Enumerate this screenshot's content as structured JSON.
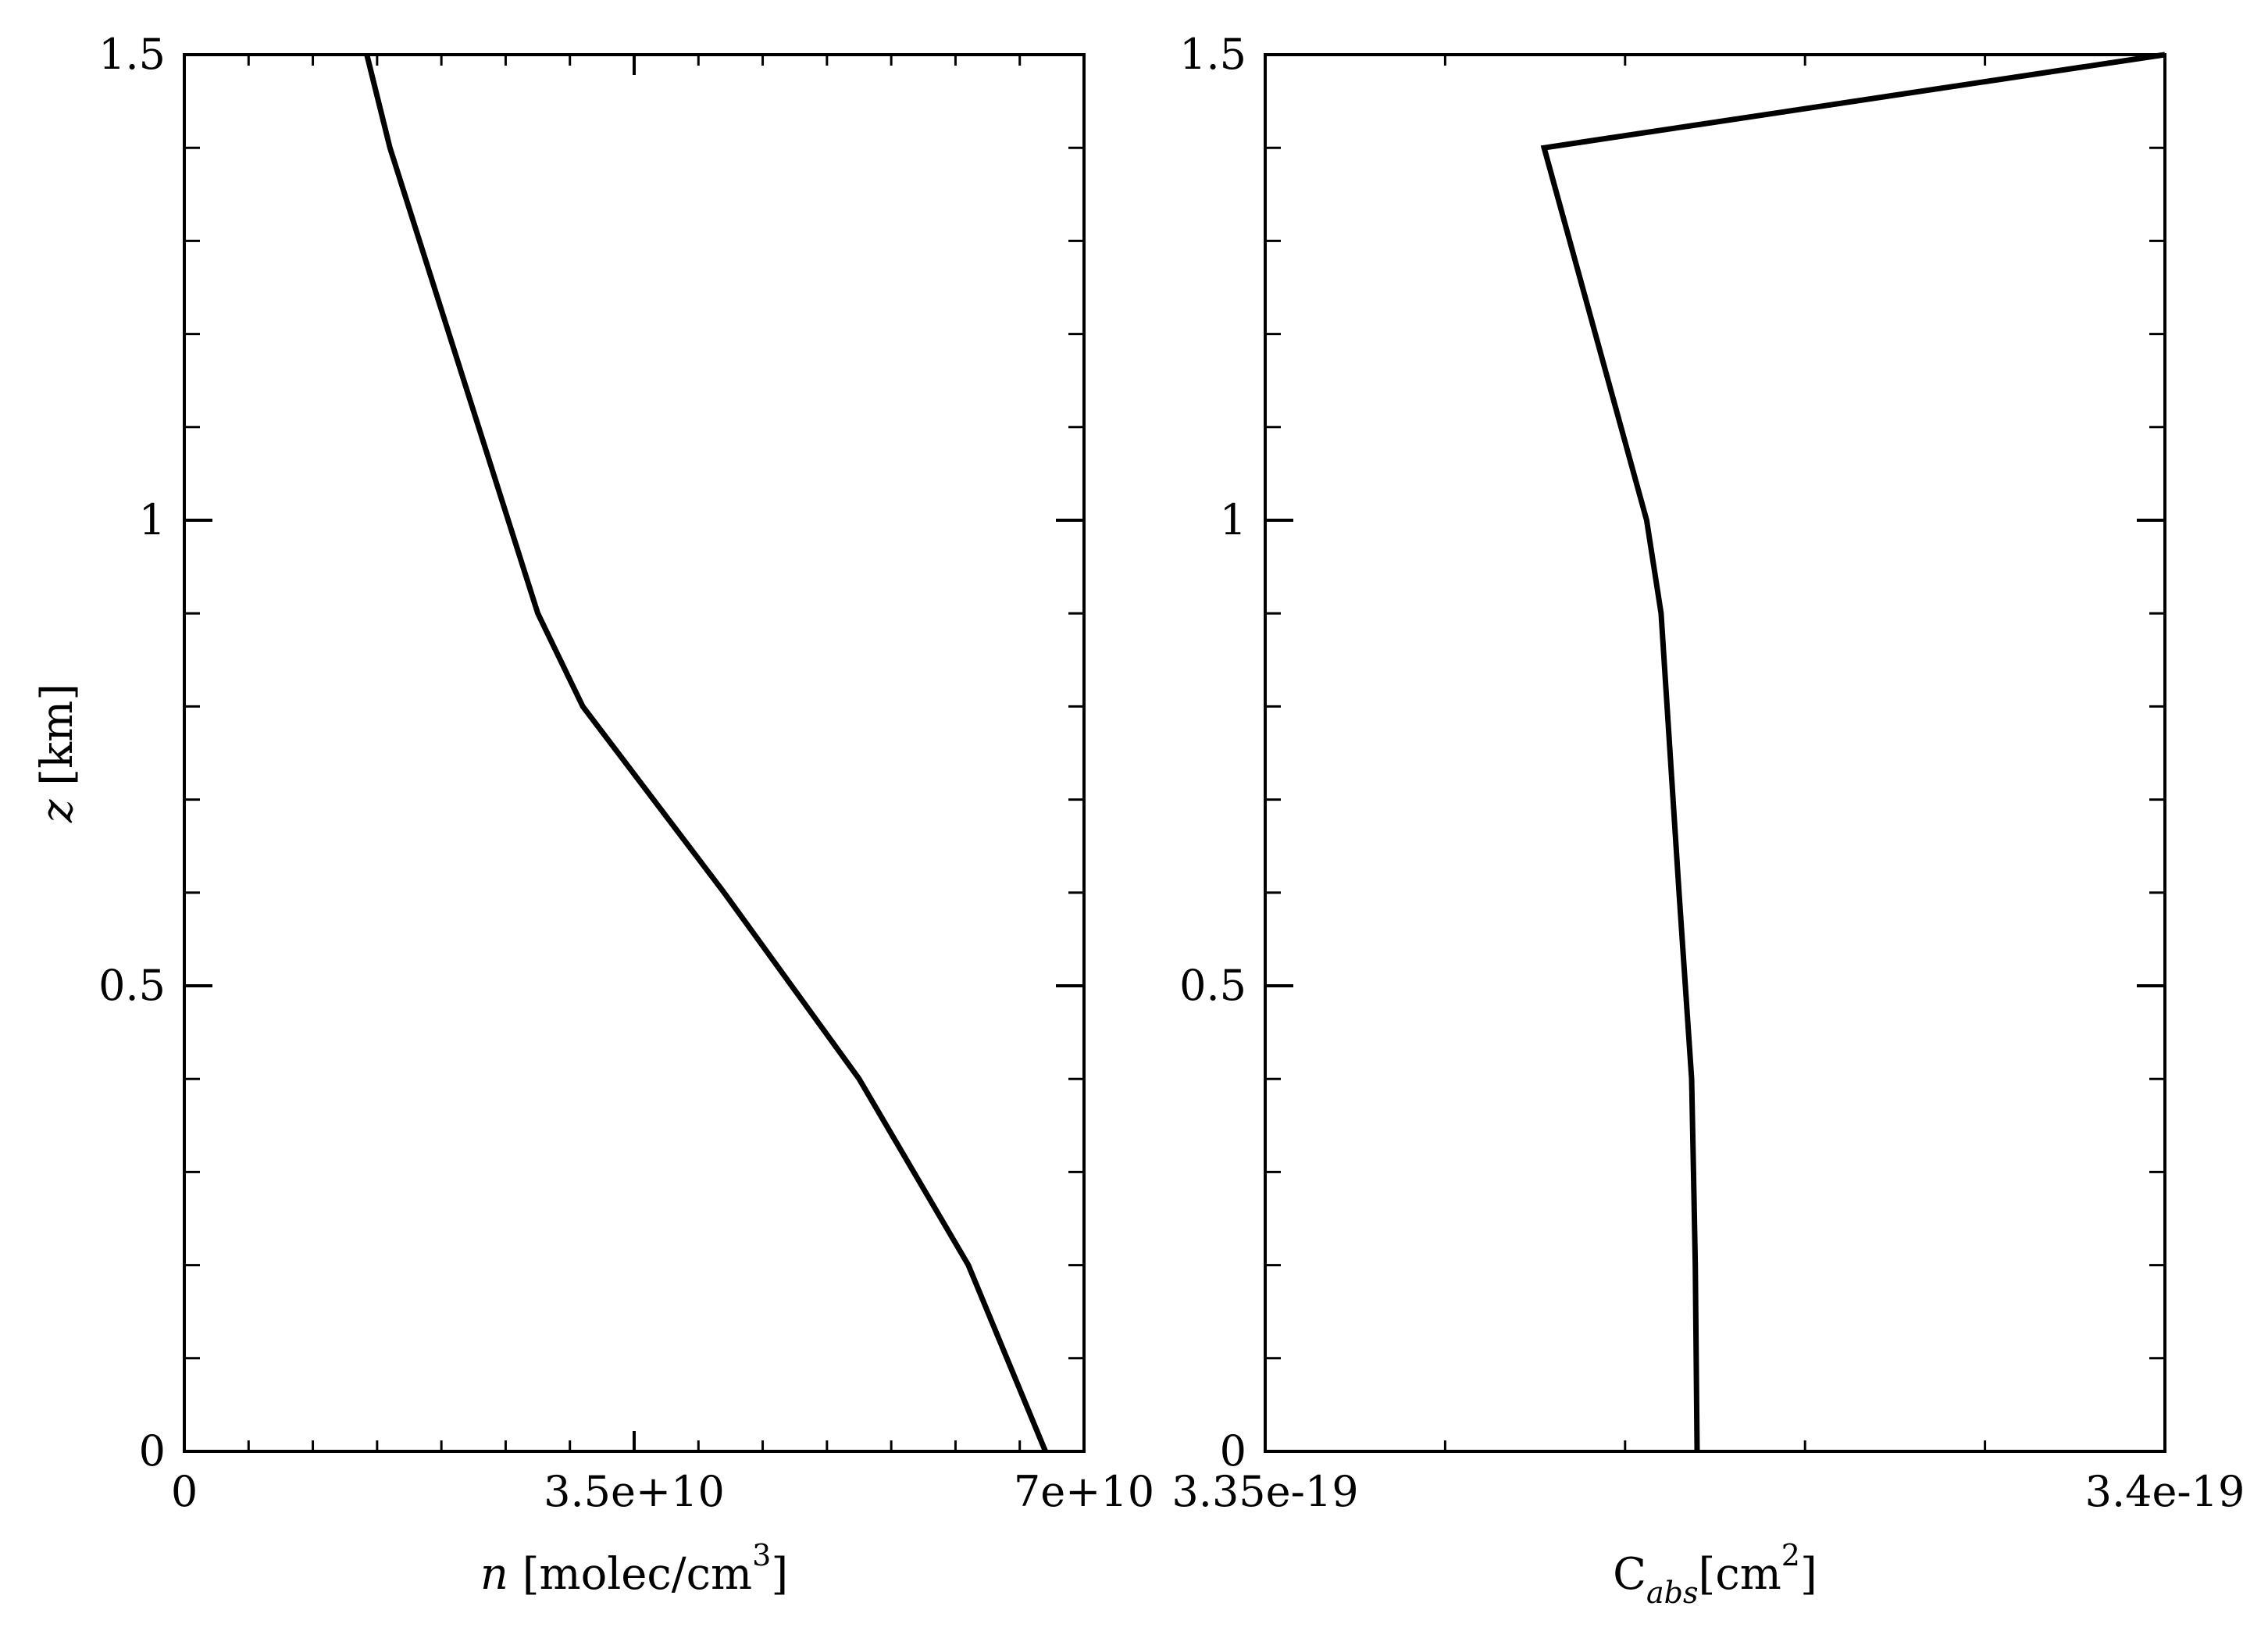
{
  "chart_data": [
    {
      "type": "line",
      "x": [
        67000000000,
        61000000000,
        52500000000,
        42000000000,
        31000000000,
        27500000000,
        16000000000,
        14200000000
      ],
      "y": [
        0.0,
        0.2,
        0.4,
        0.6,
        0.8,
        0.9,
        1.4,
        1.5
      ],
      "xlim": [
        0,
        70000000000
      ],
      "ylim": [
        0,
        1.5
      ],
      "xticks": [
        "0",
        "3.5e+10",
        "7e+10"
      ],
      "yticks": [
        "0",
        "0.5",
        "1",
        "1.5"
      ],
      "xlabel": {
        "italic": "n",
        "text": " [molec/cm",
        "sup": "3",
        "close": "]"
      },
      "ylabel": {
        "italic": "z",
        "text": " [km]"
      },
      "line_color": "#000000",
      "grid": false
    },
    {
      "type": "line",
      "x": [
        3.374e-19,
        3.3739e-19,
        3.3738e-19,
        3.3737e-19,
        3.373e-19,
        3.372e-19,
        3.3712e-19,
        3.3655e-19,
        3.4e-19
      ],
      "y": [
        0.0,
        0.2,
        0.3,
        0.4,
        0.6,
        0.9,
        1.0,
        1.4,
        1.5
      ],
      "xlim": [
        3.35e-19,
        3.4e-19
      ],
      "ylim": [
        0,
        1.5
      ],
      "xticks": [
        "3.35e-19",
        "3.4e-19"
      ],
      "yticks": [
        "0",
        "0.5",
        "1",
        "1.5"
      ],
      "xlabel": {
        "text": "C",
        "sub": "abs",
        "text2": "[cm",
        "sup": "2",
        "close": "]"
      },
      "line_color": "#000000",
      "grid": false
    }
  ]
}
